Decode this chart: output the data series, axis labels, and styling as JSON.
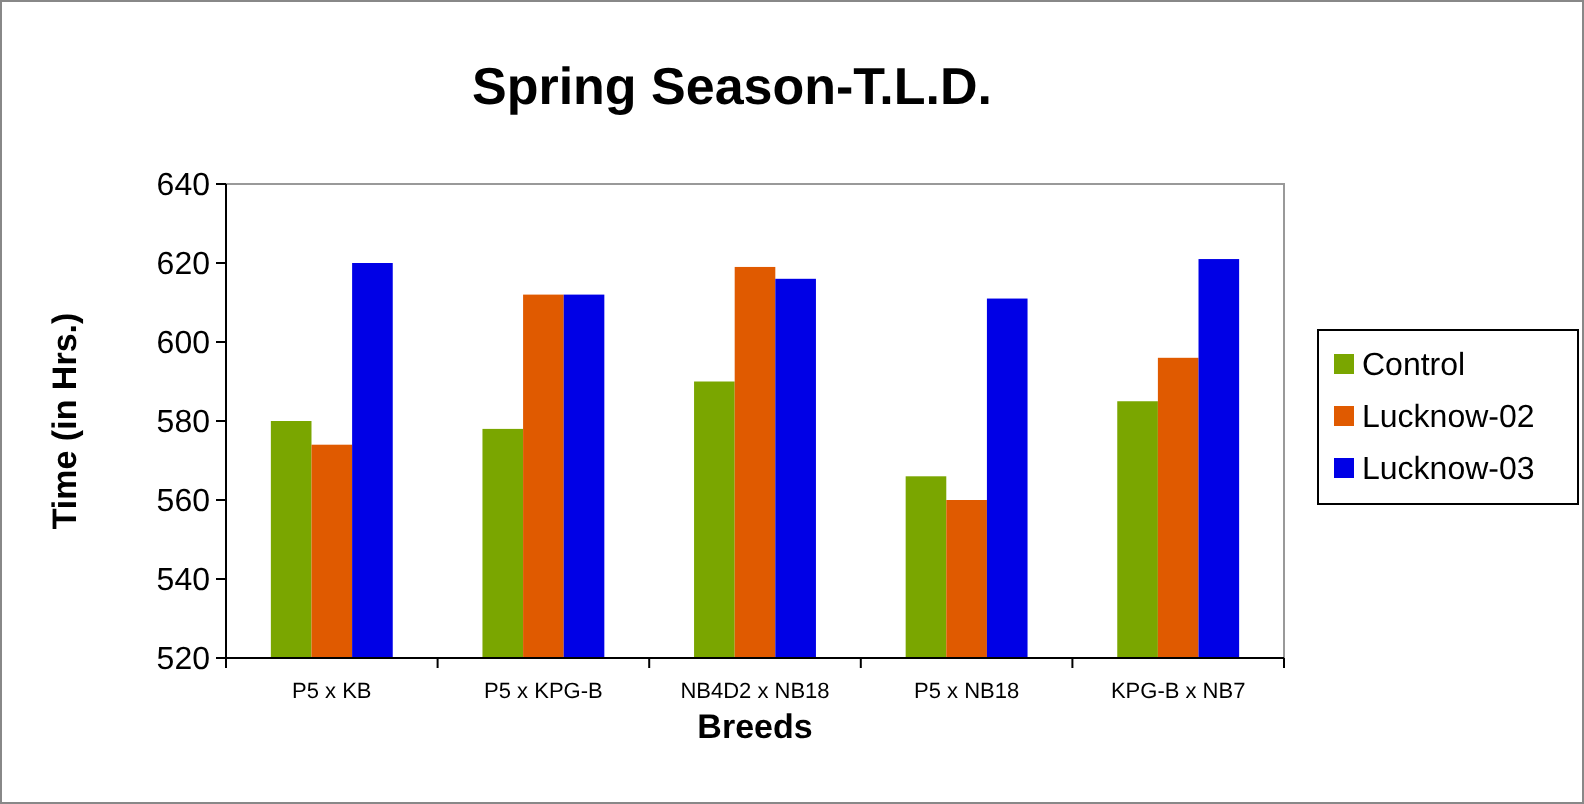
{
  "chart_data": {
    "type": "bar",
    "title": "Spring Season-T.L.D.",
    "xlabel": "Breeds",
    "ylabel": "Time (in Hrs.)",
    "categories": [
      "P5 x KB",
      "P5 x KPG-B",
      "NB4D2 x NB18",
      "P5 x NB18",
      "KPG-B x NB7"
    ],
    "series": [
      {
        "name": "Control",
        "color": "#7aa600",
        "values": [
          580,
          578,
          590,
          566,
          585
        ]
      },
      {
        "name": "Lucknow-02",
        "color": "#e05a00",
        "values": [
          574,
          612,
          619,
          560,
          596
        ]
      },
      {
        "name": "Lucknow-03",
        "color": "#0000e6",
        "values": [
          620,
          612,
          616,
          611,
          621
        ]
      }
    ],
    "ylim": [
      520,
      640
    ],
    "yticks": [
      520,
      540,
      560,
      580,
      600,
      620,
      640
    ],
    "grid": false,
    "legend": "right"
  }
}
